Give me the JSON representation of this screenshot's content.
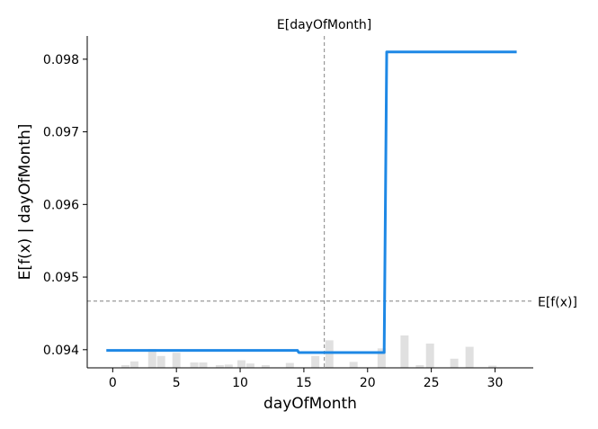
{
  "chart_data": {
    "type": "line",
    "xlabel": "dayOfMonth",
    "ylabel": "E[f(x) | dayOfMonth]",
    "xlim": [
      -2,
      33
    ],
    "ylim": [
      0.09375,
      0.09832
    ],
    "x_ticks": [
      0,
      5,
      10,
      15,
      20,
      25,
      30
    ],
    "x_tick_labels": [
      "0",
      "5",
      "10",
      "15",
      "20",
      "25",
      "30"
    ],
    "y_ticks": [
      0.094,
      0.095,
      0.096,
      0.097,
      0.098
    ],
    "y_tick_labels": [
      "0.094",
      "0.095",
      "0.096",
      "0.097",
      "0.098"
    ],
    "series": [
      {
        "color": "#1e88e5",
        "x": [
          -0.5,
          14.5,
          14.6,
          21.3,
          21.5,
          31.7
        ],
        "y": [
          0.09399,
          0.09399,
          0.09396,
          0.09396,
          0.0981,
          0.0981
        ]
      }
    ],
    "histogram": {
      "color": "#e0e0e0",
      "relative_heights": [
        {
          "x": 1,
          "h": 0.05
        },
        {
          "x": 1.7,
          "h": 0.12
        },
        {
          "x": 3.1,
          "h": 0.35
        },
        {
          "x": 3.8,
          "h": 0.22
        },
        {
          "x": 5.0,
          "h": 0.28
        },
        {
          "x": 6.4,
          "h": 0.1
        },
        {
          "x": 7.1,
          "h": 0.1
        },
        {
          "x": 8.4,
          "h": 0.05
        },
        {
          "x": 9.1,
          "h": 0.06
        },
        {
          "x": 10.1,
          "h": 0.14
        },
        {
          "x": 10.8,
          "h": 0.08
        },
        {
          "x": 12.0,
          "h": 0.05
        },
        {
          "x": 13.9,
          "h": 0.09
        },
        {
          "x": 15.9,
          "h": 0.22
        },
        {
          "x": 17.0,
          "h": 0.51
        },
        {
          "x": 18.9,
          "h": 0.11
        },
        {
          "x": 21.1,
          "h": 0.36
        },
        {
          "x": 22.9,
          "h": 0.6
        },
        {
          "x": 24.1,
          "h": 0.05
        },
        {
          "x": 24.9,
          "h": 0.45
        },
        {
          "x": 26.8,
          "h": 0.17
        },
        {
          "x": 28.0,
          "h": 0.39
        },
        {
          "x": 29.8,
          "h": 0.04
        }
      ]
    },
    "reference_lines": {
      "expected_x": {
        "value": 16.6,
        "label": "E[dayOfMonth]"
      },
      "expected_y": {
        "value": 0.09467,
        "label": "E[f(x)]"
      }
    },
    "grid": false,
    "legend": "none"
  }
}
